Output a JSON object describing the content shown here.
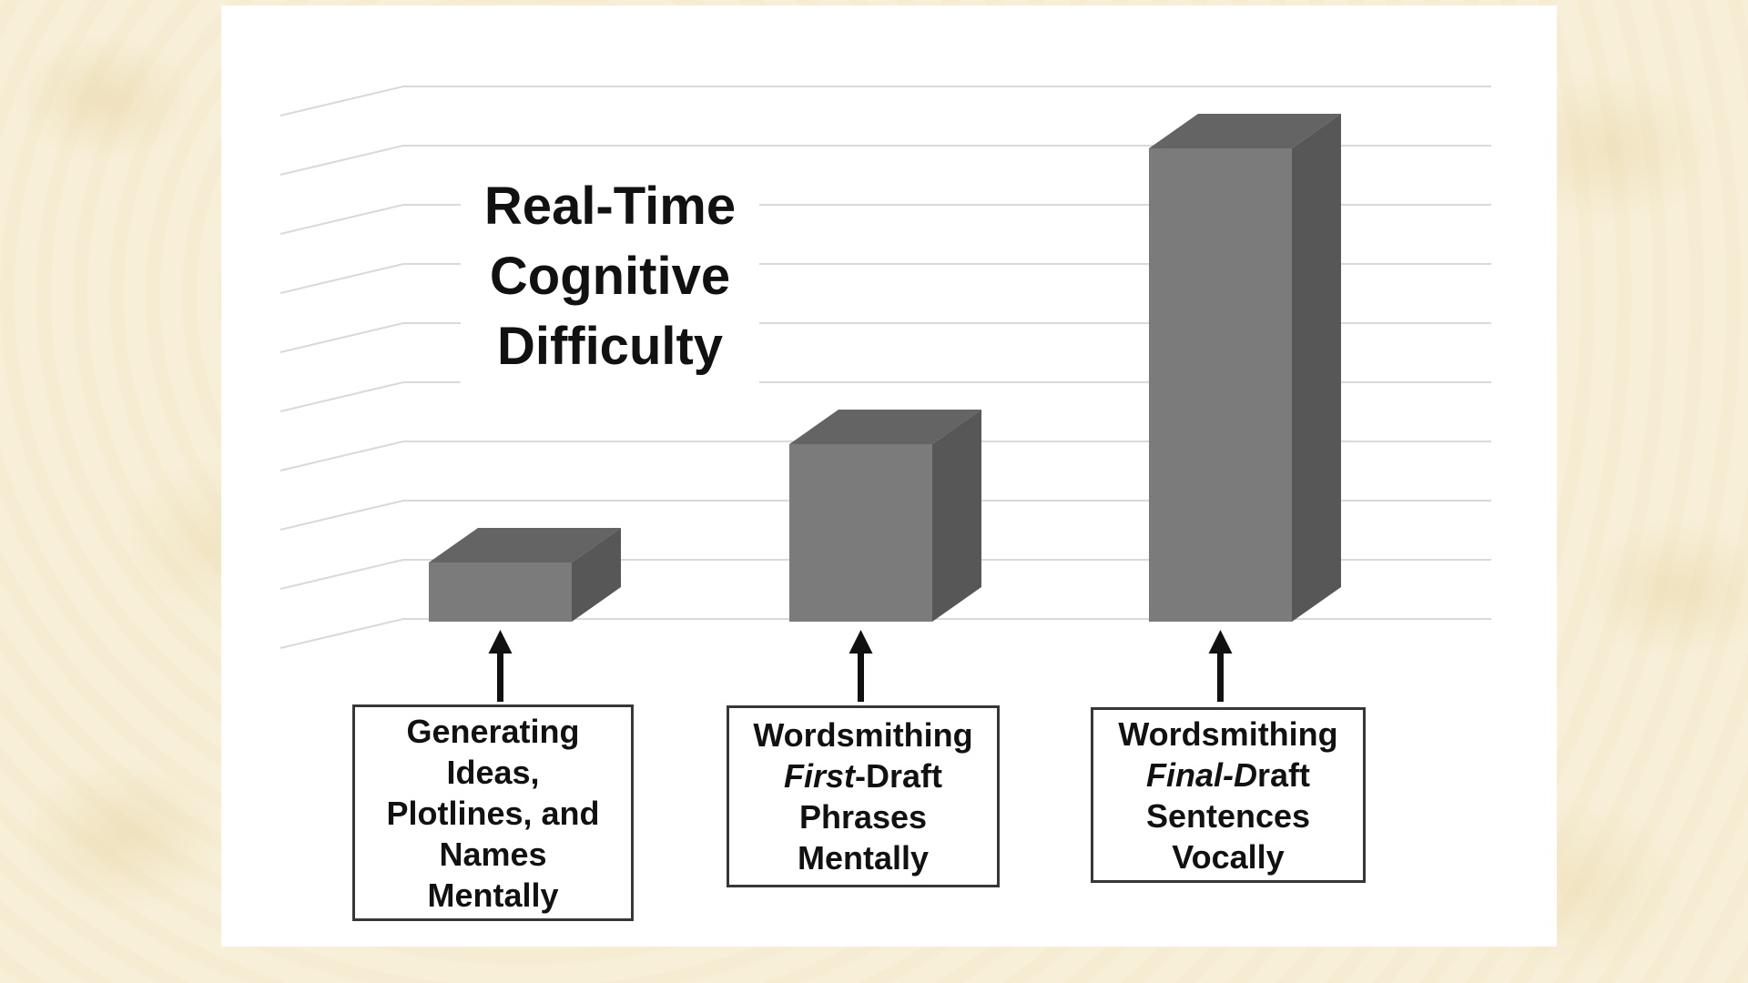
{
  "page": {
    "background_color": "#f7efd8",
    "panel_color": "#ffffff"
  },
  "chart_data": {
    "type": "bar",
    "projection": "3d-oblique",
    "title": "Real-Time\nCognitive\nDifficulty",
    "xlabel": "",
    "ylabel": "",
    "yaxis_tick_labels_visible": false,
    "legend": false,
    "gridline_count": 10,
    "ylim": [
      0,
      9
    ],
    "values": [
      1,
      3,
      8
    ],
    "categories": [
      {
        "name": "Generating Ideas, Plotlines, and Names Mentally",
        "label_lines": [
          [
            {
              "t": "Generating"
            }
          ],
          [
            {
              "t": "Ideas,"
            }
          ],
          [
            {
              "t": "Plotlines, and"
            }
          ],
          [
            {
              "t": "Names"
            }
          ],
          [
            {
              "t": "Mentally"
            }
          ]
        ]
      },
      {
        "name": "Wordsmithing First-Draft Phrases Mentally",
        "label_lines": [
          [
            {
              "t": "Wordsmithing"
            }
          ],
          [
            {
              "t": "First",
              "i": true
            },
            {
              "t": "-Draft"
            }
          ],
          [
            {
              "t": "Phrases"
            }
          ],
          [
            {
              "t": "Mentally"
            }
          ]
        ]
      },
      {
        "name": "Wordsmithing Final-Draft Sentences Vocally",
        "label_lines": [
          [
            {
              "t": "Wordsmithing"
            }
          ],
          [
            {
              "t": "Final-D",
              "i": true
            },
            {
              "t": "raft"
            }
          ],
          [
            {
              "t": "Sentences"
            }
          ],
          [
            {
              "t": "Vocally"
            }
          ]
        ]
      }
    ],
    "colors": {
      "bar_front": "#7b7b7b",
      "bar_top": "#646464",
      "bar_side": "#575757",
      "gridline": "#d9d9d9",
      "arrow": "#111111",
      "label_border": "#373737",
      "label_bg": "#ffffff",
      "text": "#111111"
    }
  }
}
